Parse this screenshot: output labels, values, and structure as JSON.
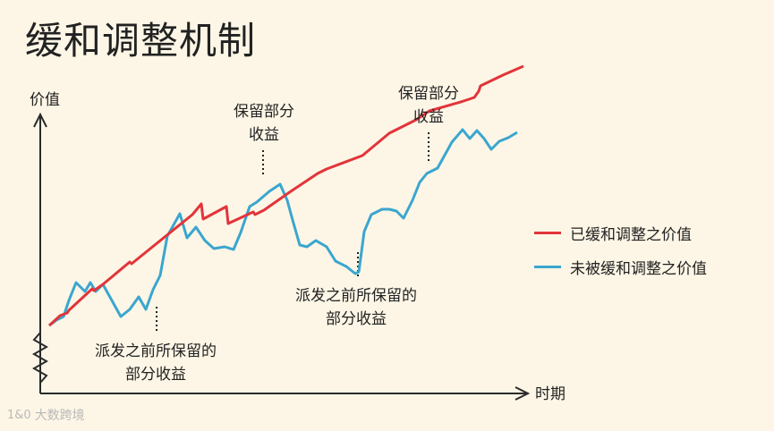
{
  "title": "缓和调整机制",
  "y_axis_label": "价值",
  "x_axis_label": "时期",
  "annotations": [
    {
      "line1": "派发之前所保留的",
      "line2": "部分收益"
    },
    {
      "line1": "保留部分",
      "line2": "收益"
    },
    {
      "line1": "派发之前所保留的",
      "line2": "部分收益"
    },
    {
      "line1": "保留部分",
      "line2": "收益"
    }
  ],
  "legend": [
    {
      "label": "已缓和调整之价值",
      "color": "#e2343a"
    },
    {
      "label": "未被缓和调整之价值",
      "color": "#3aa6cf"
    }
  ],
  "watermark": {
    "logo": "1&0",
    "text": "大数跨境"
  },
  "chart_data": {
    "type": "line",
    "title": "缓和调整机制",
    "xlabel": "时期",
    "ylabel": "价值",
    "grid": false,
    "legend_position": "right",
    "series": [
      {
        "name": "已缓和调整之价值",
        "color": "#e2343a",
        "points": [
          [
            0,
            0
          ],
          [
            10,
            9
          ],
          [
            12,
            11
          ],
          [
            20,
            14
          ],
          [
            22,
            17
          ],
          [
            48,
            41
          ],
          [
            50,
            39
          ],
          [
            60,
            46
          ],
          [
            90,
            71
          ],
          [
            92,
            69
          ],
          [
            160,
            124
          ],
          [
            170,
            136
          ],
          [
            172,
            119
          ],
          [
            198,
            133
          ],
          [
            200,
            114
          ],
          [
            228,
            127
          ],
          [
            230,
            124
          ],
          [
            240,
            129
          ],
          [
            270,
            150
          ],
          [
            300,
            170
          ],
          [
            310,
            175
          ],
          [
            350,
            190
          ],
          [
            380,
            215
          ],
          [
            410,
            230
          ],
          [
            425,
            240
          ],
          [
            460,
            250
          ],
          [
            475,
            255
          ],
          [
            480,
            262
          ],
          [
            482,
            268
          ],
          [
            507,
            280
          ],
          [
            530,
            290
          ]
        ]
      },
      {
        "name": "未被缓和调整之价值",
        "color": "#3aa6cf",
        "points": [
          [
            0,
            0
          ],
          [
            8,
            6
          ],
          [
            16,
            10
          ],
          [
            22,
            28
          ],
          [
            30,
            48
          ],
          [
            40,
            38
          ],
          [
            46,
            48
          ],
          [
            52,
            38
          ],
          [
            60,
            46
          ],
          [
            70,
            28
          ],
          [
            80,
            10
          ],
          [
            90,
            18
          ],
          [
            100,
            32
          ],
          [
            108,
            18
          ],
          [
            116,
            40
          ],
          [
            124,
            56
          ],
          [
            132,
            100
          ],
          [
            146,
            125
          ],
          [
            154,
            98
          ],
          [
            164,
            110
          ],
          [
            174,
            95
          ],
          [
            184,
            86
          ],
          [
            196,
            88
          ],
          [
            206,
            85
          ],
          [
            214,
            104
          ],
          [
            224,
            133
          ],
          [
            232,
            138
          ],
          [
            246,
            150
          ],
          [
            258,
            158
          ],
          [
            266,
            140
          ],
          [
            272,
            118
          ],
          [
            280,
            90
          ],
          [
            288,
            88
          ],
          [
            298,
            95
          ],
          [
            310,
            88
          ],
          [
            320,
            72
          ],
          [
            332,
            66
          ],
          [
            342,
            58
          ],
          [
            346,
            60
          ],
          [
            352,
            105
          ],
          [
            360,
            124
          ],
          [
            372,
            130
          ],
          [
            380,
            130
          ],
          [
            388,
            128
          ],
          [
            396,
            120
          ],
          [
            406,
            140
          ],
          [
            414,
            160
          ],
          [
            422,
            170
          ],
          [
            434,
            176
          ],
          [
            450,
            205
          ],
          [
            462,
            219
          ],
          [
            470,
            209
          ],
          [
            478,
            218
          ],
          [
            486,
            209
          ],
          [
            494,
            197
          ],
          [
            503,
            206
          ],
          [
            513,
            210
          ],
          [
            523,
            216
          ]
        ]
      }
    ]
  }
}
